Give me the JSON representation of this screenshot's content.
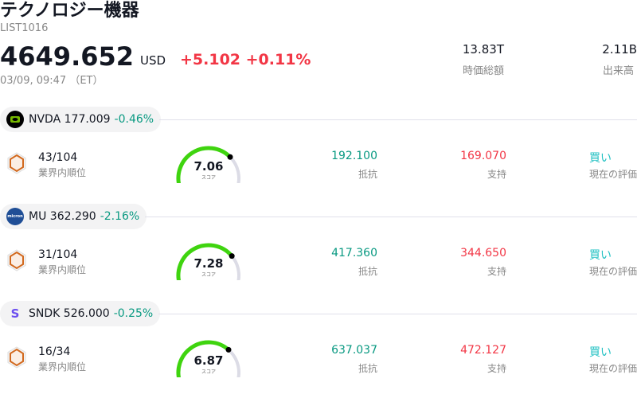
{
  "header": {
    "title": "テクノロジー機器",
    "code": "LIST1016",
    "price": "4649.652",
    "currency": "USD",
    "change": "+5.102 +0.11%",
    "time": "03/09, 09:47 （ET）",
    "stats": [
      {
        "value": "13.83T",
        "label": "時価総額"
      },
      {
        "value": "2.11B",
        "label": "出来高"
      }
    ]
  },
  "colors": {
    "up": "#f23645",
    "down": "#089981",
    "gauge": "#3fd40f",
    "track": "#dcdce6",
    "buy": "#22c1c3"
  },
  "items": [
    {
      "symbol": "NVDA",
      "price": "177.009",
      "change": "-0.46%",
      "logo": "nvidia-logo",
      "rank": "43/104",
      "rank_label": "業界内順位",
      "score": "7.06",
      "score_value": 7.06,
      "score_label": "スコア",
      "resistance": "192.100",
      "resistance_label": "抵抗",
      "support": "169.070",
      "support_label": "支持",
      "rating": "買い",
      "rating_label": "現在の評価"
    },
    {
      "symbol": "MU",
      "price": "362.290",
      "change": "-2.16%",
      "logo": "micron-logo",
      "rank": "31/104",
      "rank_label": "業界内順位",
      "score": "7.28",
      "score_value": 7.28,
      "score_label": "スコア",
      "resistance": "417.360",
      "resistance_label": "抵抗",
      "support": "344.650",
      "support_label": "支持",
      "rating": "買い",
      "rating_label": "現在の評価"
    },
    {
      "symbol": "SNDK",
      "price": "526.000",
      "change": "-0.25%",
      "logo": "sandisk-logo",
      "logo_text": "S",
      "rank": "16/34",
      "rank_label": "業界内順位",
      "score": "6.87",
      "score_value": 6.87,
      "score_label": "スコア",
      "resistance": "637.037",
      "resistance_label": "抵抗",
      "support": "472.127",
      "support_label": "支持",
      "rating": "買い",
      "rating_label": "現在の評価"
    }
  ]
}
